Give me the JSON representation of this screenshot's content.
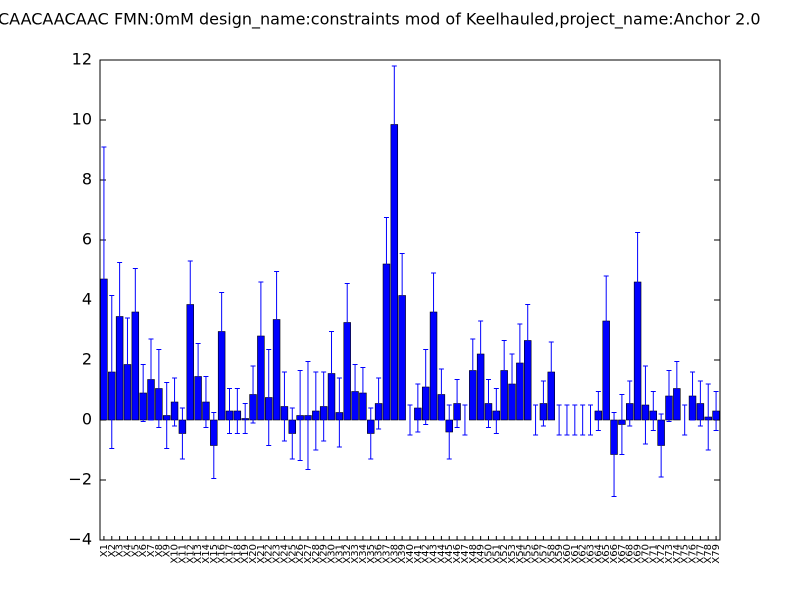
{
  "chart_data": {
    "type": "bar",
    "title": "CAACAACAAC  FMN:0mM  design_name:constraints mod of Keelhauled,project_name:Anchor 2.0",
    "categories": [
      "X1",
      "X2",
      "X3",
      "X4",
      "X5",
      "X6",
      "X7",
      "X8",
      "X9",
      "X10",
      "X11",
      "X12",
      "X13",
      "X14",
      "X15",
      "X16",
      "X17",
      "X18",
      "X19",
      "X20",
      "X21",
      "X22",
      "X23",
      "X24",
      "X25",
      "X26",
      "X27",
      "X28",
      "X29",
      "X30",
      "X31",
      "X32",
      "X33",
      "X34",
      "X35",
      "X36",
      "X37",
      "X38",
      "X39",
      "X40",
      "X41",
      "X42",
      "X43",
      "X44",
      "X45",
      "X46",
      "X47",
      "X48",
      "X49",
      "X50",
      "X51",
      "X52",
      "X53",
      "X54",
      "X55",
      "X56",
      "X57",
      "X58",
      "X59",
      "X60",
      "X61",
      "X62",
      "X63",
      "X64",
      "X65",
      "X66",
      "X67",
      "X68",
      "X69",
      "X70",
      "X71",
      "X72",
      "X73",
      "X74",
      "X75",
      "X76",
      "X77",
      "X78",
      "X79"
    ],
    "values": [
      4.7,
      1.6,
      3.45,
      1.85,
      3.6,
      0.9,
      1.35,
      1.05,
      0.15,
      0.6,
      -0.45,
      3.85,
      1.45,
      0.6,
      -0.85,
      2.95,
      0.3,
      0.3,
      0.05,
      0.85,
      2.8,
      0.75,
      3.35,
      0.45,
      -0.45,
      0.15,
      0.15,
      0.3,
      0.45,
      1.55,
      0.25,
      3.25,
      0.95,
      0.9,
      -0.45,
      0.55,
      5.2,
      9.85,
      4.15,
      0,
      0.4,
      1.1,
      3.6,
      0.85,
      -0.4,
      0.55,
      0,
      1.65,
      2.2,
      0.55,
      0.3,
      1.65,
      1.2,
      1.9,
      2.65,
      0,
      0.55,
      1.6,
      0,
      0,
      0,
      0,
      0,
      0.3,
      3.3,
      -1.15,
      -0.15,
      0.55,
      4.6,
      0.5,
      0.3,
      -0.85,
      0.8,
      1.05,
      0,
      0.8,
      0.55,
      0.1,
      0.3
    ],
    "errors": [
      4.4,
      2.55,
      1.8,
      1.55,
      1.45,
      0.95,
      1.35,
      1.3,
      1.1,
      0.8,
      0.85,
      1.45,
      1.1,
      0.85,
      1.1,
      1.3,
      0.75,
      0.75,
      0.5,
      0.95,
      1.8,
      1.6,
      1.6,
      1.15,
      0.85,
      1.5,
      1.8,
      1.3,
      1.15,
      1.4,
      1.15,
      1.3,
      0.9,
      0.85,
      0.85,
      0.85,
      1.55,
      1.95,
      1.4,
      0.5,
      0.8,
      1.25,
      1.3,
      0.85,
      0.9,
      0.8,
      0.5,
      1.05,
      1.1,
      0.8,
      0.75,
      1.0,
      1.0,
      1.3,
      1.2,
      0.5,
      0.75,
      1.0,
      0.5,
      0.5,
      0.5,
      0.5,
      0.5,
      0.65,
      1.5,
      1.4,
      1.0,
      0.75,
      1.65,
      1.3,
      0.65,
      1.05,
      0.85,
      0.9,
      0.5,
      0.8,
      0.75,
      1.1,
      0.65
    ],
    "color": "#0000ff",
    "ylim": [
      -4,
      12
    ],
    "yticks": [
      {
        "value": -4,
        "label": "−4"
      },
      {
        "value": -2,
        "label": "−2"
      },
      0,
      2,
      4,
      6,
      8,
      10,
      12
    ]
  }
}
